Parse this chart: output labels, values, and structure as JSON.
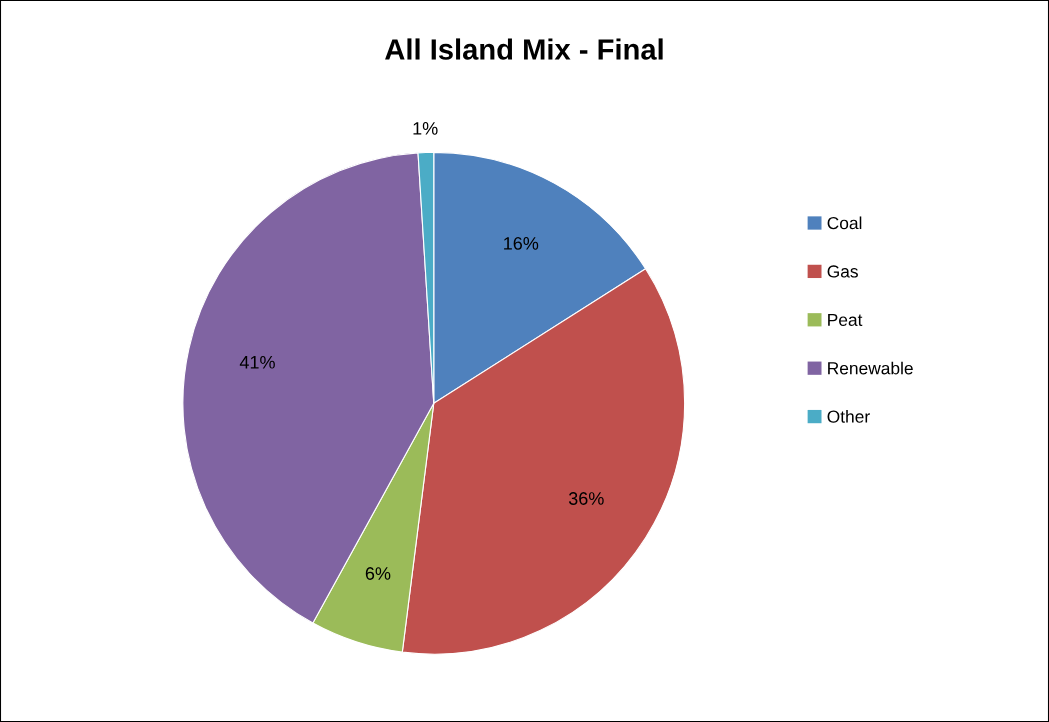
{
  "chart_data": {
    "type": "pie",
    "title": "All Island Mix - Final",
    "categories": [
      "Coal",
      "Gas",
      "Peat",
      "Renewable",
      "Other"
    ],
    "values": [
      16,
      36,
      6,
      41,
      1
    ],
    "colors": [
      "#4f81bd",
      "#c0504d",
      "#9bbb59",
      "#8064a2",
      "#4bacc6"
    ],
    "value_labels": [
      "16%",
      "36%",
      "6%",
      "41%",
      "1%"
    ],
    "legend": "right"
  }
}
